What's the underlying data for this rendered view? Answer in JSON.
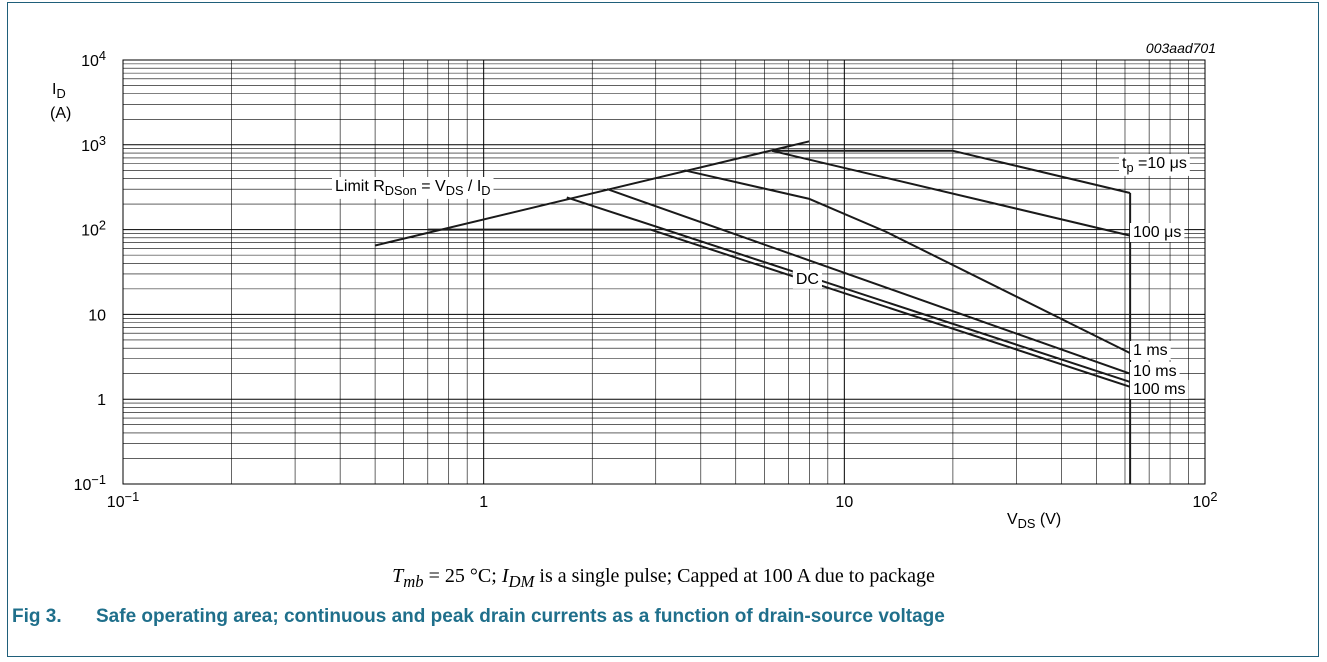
{
  "figure": {
    "number": "Fig 3.",
    "title": "Safe operating area; continuous and peak drain currents as a function of drain-source voltage",
    "code": "003aad701",
    "condition": {
      "tmb_symbol": "T",
      "tmb_sub": "mb",
      "tmb_value": " = 25 °C; ",
      "idm_symbol": "I",
      "idm_sub": "DM",
      "rest": " is a single pulse; Capped at 100 A due to package"
    }
  },
  "chart_data": {
    "type": "line",
    "xscale": "log",
    "yscale": "log",
    "xlim": [
      0.1,
      100
    ],
    "ylim": [
      0.1,
      10000
    ],
    "grid": true,
    "xlabel": "V",
    "xlabel_sub": "DS",
    "xlabel_unit": " (V)",
    "ylabel": "I",
    "ylabel_sub": "D",
    "ylabel_unit": "(A)",
    "x_ticks": [
      {
        "base": "10",
        "exp": "−1",
        "value": 0.1
      },
      {
        "base": "1",
        "exp": "",
        "value": 1
      },
      {
        "base": "10",
        "exp": "",
        "value": 10
      },
      {
        "base": "10",
        "exp": "2",
        "value": 100
      }
    ],
    "y_ticks": [
      {
        "base": "10",
        "exp": "−1",
        "value": 0.1
      },
      {
        "base": "1",
        "exp": "",
        "value": 1
      },
      {
        "base": "10",
        "exp": "",
        "value": 10
      },
      {
        "base": "10",
        "exp": "2",
        "value": 100
      },
      {
        "base": "10",
        "exp": "3",
        "value": 1000
      },
      {
        "base": "10",
        "exp": "4",
        "value": 10000
      }
    ],
    "limit_line": {
      "label_prefix": "Limit R",
      "label_sub1": "DSon",
      "label_mid": " = V",
      "label_sub2": "DS",
      "label_sep": " / I",
      "label_sub3": "D",
      "points": [
        [
          0.5,
          65
        ],
        [
          8,
          1100
        ]
      ]
    },
    "series": [
      {
        "label": "t",
        "label_sub": "p",
        "label_rest": " =10 μs",
        "points": [
          [
            6.3,
            850
          ],
          [
            20,
            850
          ],
          [
            62,
            270
          ]
        ]
      },
      {
        "label": "100 μs",
        "points": [
          [
            6.3,
            850
          ],
          [
            62,
            85
          ]
        ]
      },
      {
        "label": "1 ms",
        "points": [
          [
            3.6,
            500
          ],
          [
            8,
            230
          ],
          [
            13,
            95
          ],
          [
            62,
            3.5
          ]
        ]
      },
      {
        "label": "10 ms",
        "points": [
          [
            2.2,
            300
          ],
          [
            62,
            2.0
          ]
        ]
      },
      {
        "label": "100 ms",
        "points": [
          [
            1.7,
            240
          ],
          [
            62,
            1.6
          ]
        ]
      },
      {
        "label": "DC",
        "points": [
          [
            0.7,
            100
          ],
          [
            2.9,
            100
          ],
          [
            62,
            1.4
          ]
        ]
      }
    ],
    "vertical_limit_v": 62,
    "dc_label_at": [
      7.9,
      27
    ]
  }
}
